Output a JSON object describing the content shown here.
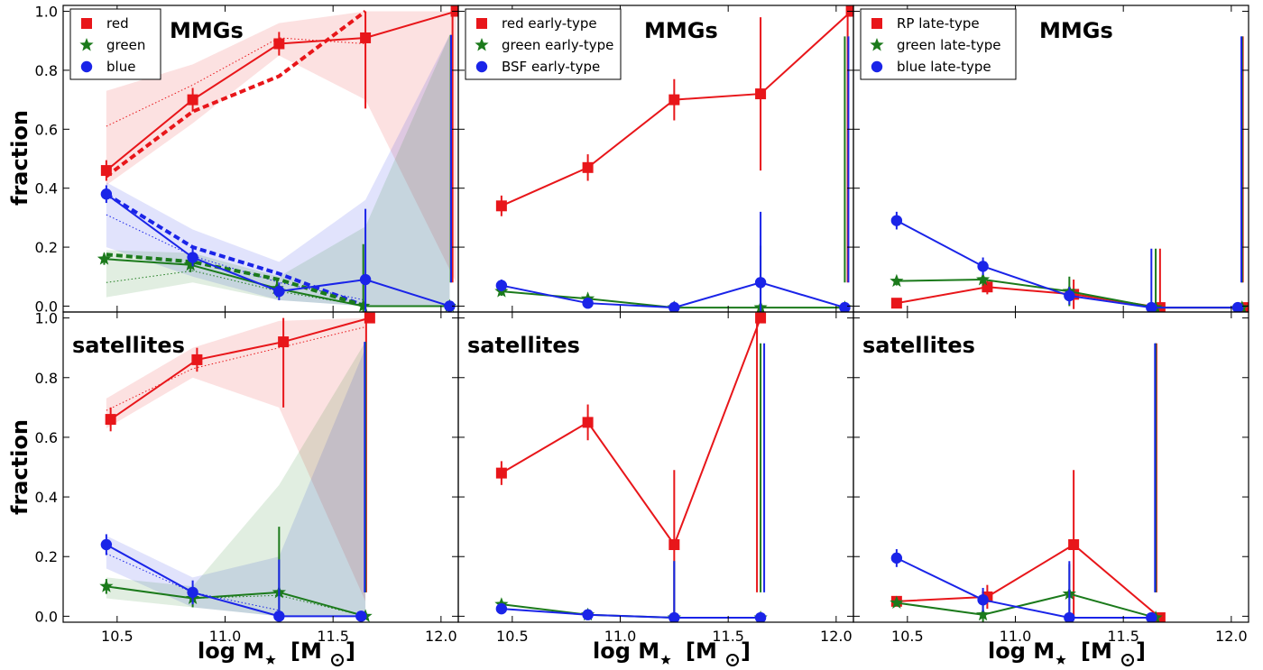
{
  "figure": {
    "xlabel": "log M",
    "xlabel_unit": "[M",
    "xlabel_unit_close": "]",
    "ylabel": "fraction"
  },
  "colors": {
    "red": "#e8161a",
    "green": "#1b7a1b",
    "blue": "#1a24e8"
  },
  "chart_data": [
    {
      "type": "line",
      "title": "MMGs",
      "xlim": [
        10.25,
        12.08
      ],
      "ylim": [
        -0.02,
        1.02
      ],
      "xticks": [
        10.5,
        11.0,
        11.5,
        12.0
      ],
      "yticks": [
        0.0,
        0.2,
        0.4,
        0.6,
        0.8,
        1.0
      ],
      "show_xticklabels": false,
      "show_ylabel": true,
      "legend": "top-left",
      "series": [
        {
          "name": "red",
          "color": "red",
          "marker": "square",
          "x": [
            10.45,
            10.85,
            11.25,
            11.65,
            12.07
          ],
          "y": [
            0.46,
            0.7,
            0.89,
            0.91,
            1.0
          ],
          "err": [
            0.035,
            0.04,
            0.04,
            0.24,
            0.92
          ],
          "errx": [
            10.45,
            10.85,
            11.25,
            11.65,
            12.07
          ]
        },
        {
          "name": "green",
          "color": "green",
          "marker": "star",
          "x": [
            10.44,
            10.84,
            11.24,
            11.64,
            12.04
          ],
          "y": [
            0.16,
            0.14,
            0.06,
            0.0,
            0.0
          ],
          "err": [
            0.02,
            0.025,
            0.03,
            0.21,
            0.92
          ],
          "errx": [
            10.44,
            10.84,
            11.24,
            11.64,
            12.045
          ]
        },
        {
          "name": "blue",
          "color": "blue",
          "marker": "circle",
          "x": [
            10.45,
            10.85,
            11.25,
            11.65,
            12.04
          ],
          "y": [
            0.38,
            0.165,
            0.05,
            0.09,
            0.0
          ],
          "err": [
            0.03,
            0.03,
            0.03,
            0.24,
            0.92
          ],
          "errx": [
            10.45,
            10.85,
            11.25,
            11.65,
            12.03
          ]
        }
      ],
      "dashed": [
        {
          "color": "red",
          "x": [
            10.45,
            10.85,
            11.25,
            11.65
          ],
          "y": [
            0.44,
            0.66,
            0.78,
            1.0
          ]
        },
        {
          "color": "blue",
          "x": [
            10.45,
            10.85,
            11.25,
            11.65
          ],
          "y": [
            0.38,
            0.2,
            0.11,
            0.0
          ]
        },
        {
          "color": "green",
          "x": [
            10.45,
            10.85,
            11.25,
            11.65
          ],
          "y": [
            0.175,
            0.15,
            0.09,
            0.0
          ]
        }
      ],
      "dotted": [
        {
          "color": "red",
          "x": [
            10.45,
            10.85,
            11.25,
            11.65
          ],
          "y": [
            0.61,
            0.75,
            0.91,
            0.89
          ]
        },
        {
          "color": "blue",
          "x": [
            10.45,
            10.85,
            11.25,
            11.65
          ],
          "y": [
            0.31,
            0.17,
            0.08,
            0.02
          ]
        },
        {
          "color": "green",
          "x": [
            10.45,
            10.85,
            11.25,
            11.65
          ],
          "y": [
            0.08,
            0.12,
            0.05,
            0.0
          ]
        }
      ],
      "bands": [
        {
          "color": "red",
          "x": [
            10.45,
            10.85,
            11.25,
            11.65,
            12.07
          ],
          "lo": [
            0.41,
            0.62,
            0.85,
            0.7,
            0.08
          ],
          "hi": [
            0.73,
            0.82,
            0.96,
            1.0,
            1.0
          ]
        },
        {
          "color": "blue",
          "x": [
            10.45,
            10.85,
            11.25,
            11.65,
            12.04
          ],
          "lo": [
            0.2,
            0.1,
            0.02,
            0.0,
            0.0
          ],
          "hi": [
            0.42,
            0.26,
            0.15,
            0.36,
            0.92
          ]
        },
        {
          "color": "green",
          "x": [
            10.45,
            10.85,
            11.25,
            11.65,
            12.04
          ],
          "lo": [
            0.03,
            0.08,
            0.02,
            0.0,
            0.0
          ],
          "hi": [
            0.19,
            0.18,
            0.1,
            0.27,
            0.92
          ]
        }
      ]
    },
    {
      "type": "line",
      "title": "MMGs",
      "xlim": [
        10.25,
        12.08
      ],
      "ylim": [
        -0.02,
        1.02
      ],
      "xticks": [
        10.5,
        11.0,
        11.5,
        12.0
      ],
      "yticks": [
        0.0,
        0.2,
        0.4,
        0.6,
        0.8,
        1.0
      ],
      "show_xticklabels": false,
      "show_ylabel": false,
      "legend": "top-left",
      "series": [
        {
          "name": "red early-type",
          "color": "red",
          "marker": "square",
          "x": [
            10.45,
            10.85,
            11.25,
            11.65,
            12.07
          ],
          "y": [
            0.34,
            0.47,
            0.7,
            0.72,
            1.0
          ],
          "err": [
            0.035,
            0.045,
            0.07,
            0.26,
            0.92
          ]
        },
        {
          "name": "green early-type",
          "color": "green",
          "marker": "star",
          "x": [
            10.45,
            10.85,
            11.25,
            11.65,
            12.04
          ],
          "y": [
            0.05,
            0.025,
            -0.005,
            -0.005,
            -0.005
          ],
          "err": [
            0.015,
            0.015,
            0.02,
            0.21,
            0.92
          ]
        },
        {
          "name": "BSF early-type",
          "color": "blue",
          "marker": "circle",
          "x": [
            10.45,
            10.85,
            11.25,
            11.65,
            12.04
          ],
          "y": [
            0.07,
            0.01,
            -0.005,
            0.08,
            -0.005
          ],
          "err": [
            0.02,
            0.015,
            0.02,
            0.24,
            0.92
          ]
        }
      ]
    },
    {
      "type": "line",
      "title": "MMGs",
      "xlim": [
        10.25,
        12.08
      ],
      "ylim": [
        -0.02,
        1.02
      ],
      "xticks": [
        10.5,
        11.0,
        11.5,
        12.0
      ],
      "yticks": [
        0.0,
        0.2,
        0.4,
        0.6,
        0.8,
        1.0
      ],
      "show_xticklabels": false,
      "show_ylabel": false,
      "legend": "top-left",
      "series": [
        {
          "name": "RP late-type",
          "color": "red",
          "marker": "square",
          "x": [
            10.45,
            10.87,
            11.27,
            11.67,
            12.07
          ],
          "y": [
            0.01,
            0.065,
            0.04,
            -0.005,
            -0.005
          ],
          "err": [
            0.0,
            0.025,
            0.05,
            0.2,
            0.92
          ]
        },
        {
          "name": "green late-type",
          "color": "green",
          "marker": "star",
          "x": [
            10.45,
            10.85,
            11.25,
            11.65,
            12.05
          ],
          "y": [
            0.085,
            0.09,
            0.05,
            -0.005,
            -0.005
          ],
          "err": [
            0.015,
            0.02,
            0.05,
            0.2,
            0.92
          ]
        },
        {
          "name": "blue late-type",
          "color": "blue",
          "marker": "circle",
          "x": [
            10.45,
            10.85,
            11.25,
            11.63,
            12.03
          ],
          "y": [
            0.29,
            0.135,
            0.035,
            -0.005,
            -0.005
          ],
          "err": [
            0.03,
            0.03,
            0.03,
            0.2,
            0.92
          ]
        }
      ]
    },
    {
      "type": "line",
      "title": "satellites",
      "xlim": [
        10.25,
        12.08
      ],
      "ylim": [
        -0.02,
        1.02
      ],
      "xticks": [
        10.5,
        11.0,
        11.5,
        12.0
      ],
      "yticks": [
        0.0,
        0.2,
        0.4,
        0.6,
        0.8,
        1.0
      ],
      "show_xticklabels": true,
      "show_ylabel": true,
      "series": [
        {
          "color": "red",
          "marker": "square",
          "x": [
            10.47,
            10.87,
            11.27,
            11.67
          ],
          "y": [
            0.66,
            0.86,
            0.92,
            1.0
          ],
          "err": [
            0.04,
            0.04,
            0.22,
            0.92
          ]
        },
        {
          "color": "green",
          "marker": "star",
          "x": [
            10.45,
            10.85,
            11.25,
            11.65
          ],
          "y": [
            0.1,
            0.06,
            0.08,
            0.0
          ],
          "err": [
            0.025,
            0.03,
            0.22,
            0.92
          ]
        },
        {
          "color": "blue",
          "marker": "circle",
          "x": [
            10.45,
            10.85,
            11.25,
            11.63
          ],
          "y": [
            0.24,
            0.08,
            0.0,
            0.0
          ],
          "err": [
            0.035,
            0.04,
            0.19,
            0.92
          ]
        }
      ],
      "dotted": [
        {
          "color": "red",
          "x": [
            10.45,
            10.85,
            11.25,
            11.65
          ],
          "y": [
            0.69,
            0.83,
            0.9,
            0.97
          ]
        },
        {
          "color": "blue",
          "x": [
            10.45,
            10.85,
            11.25
          ],
          "y": [
            0.21,
            0.08,
            0.02
          ]
        },
        {
          "color": "green",
          "x": [
            10.45,
            10.85,
            11.25,
            11.65
          ],
          "y": [
            0.1,
            0.06,
            0.07,
            0.0
          ]
        }
      ],
      "bands": [
        {
          "color": "red",
          "x": [
            10.45,
            10.85,
            11.25,
            11.65
          ],
          "lo": [
            0.63,
            0.8,
            0.7,
            0.05
          ],
          "hi": [
            0.73,
            0.9,
            0.99,
            1.0
          ]
        },
        {
          "color": "blue",
          "x": [
            10.45,
            10.85,
            11.25,
            11.65
          ],
          "lo": [
            0.16,
            0.03,
            0.0,
            0.0
          ],
          "hi": [
            0.27,
            0.13,
            0.2,
            0.9
          ]
        },
        {
          "color": "green",
          "x": [
            10.45,
            10.85,
            11.25,
            11.65
          ],
          "lo": [
            0.06,
            0.03,
            0.0,
            0.0
          ],
          "hi": [
            0.13,
            0.1,
            0.44,
            0.92
          ]
        }
      ]
    },
    {
      "type": "line",
      "title": "satellites",
      "xlim": [
        10.25,
        12.08
      ],
      "ylim": [
        -0.02,
        1.02
      ],
      "xticks": [
        10.5,
        11.0,
        11.5,
        12.0
      ],
      "yticks": [
        0.0,
        0.2,
        0.4,
        0.6,
        0.8,
        1.0
      ],
      "show_xticklabels": true,
      "show_ylabel": false,
      "series": [
        {
          "color": "red",
          "marker": "square",
          "x": [
            10.45,
            10.85,
            11.25,
            11.65
          ],
          "y": [
            0.48,
            0.65,
            0.24,
            1.0
          ],
          "err": [
            0.04,
            0.06,
            0.25,
            0.92
          ]
        },
        {
          "color": "green",
          "marker": "star",
          "x": [
            10.45,
            10.85,
            11.25,
            11.65
          ],
          "y": [
            0.04,
            0.005,
            -0.005,
            -0.005
          ],
          "err": [
            0.015,
            0.015,
            0.19,
            0.92
          ]
        },
        {
          "color": "blue",
          "marker": "circle",
          "x": [
            10.45,
            10.85,
            11.25,
            11.65
          ],
          "y": [
            0.025,
            0.005,
            -0.005,
            -0.005
          ],
          "err": [
            0.01,
            0.015,
            0.19,
            0.92
          ]
        }
      ]
    },
    {
      "type": "line",
      "title": "satellites",
      "xlim": [
        10.25,
        12.08
      ],
      "ylim": [
        -0.02,
        1.02
      ],
      "xticks": [
        10.5,
        11.0,
        11.5,
        12.0
      ],
      "yticks": [
        0.0,
        0.2,
        0.4,
        0.6,
        0.8,
        1.0
      ],
      "show_xticklabels": true,
      "show_ylabel": false,
      "series": [
        {
          "color": "red",
          "marker": "square",
          "x": [
            10.45,
            10.87,
            11.27,
            11.67
          ],
          "y": [
            0.05,
            0.065,
            0.24,
            -0.005
          ],
          "err": [
            0.0,
            0.04,
            0.25,
            0.92
          ]
        },
        {
          "color": "green",
          "marker": "star",
          "x": [
            10.45,
            10.85,
            11.25,
            11.65
          ],
          "y": [
            0.045,
            0.005,
            0.075,
            -0.005
          ],
          "err": [
            0.0,
            0.04,
            0.1,
            0.92
          ]
        },
        {
          "color": "blue",
          "marker": "circle",
          "x": [
            10.45,
            10.85,
            11.25,
            11.63
          ],
          "y": [
            0.195,
            0.055,
            -0.005,
            -0.005
          ],
          "err": [
            0.03,
            0.04,
            0.19,
            0.92
          ]
        }
      ]
    }
  ]
}
